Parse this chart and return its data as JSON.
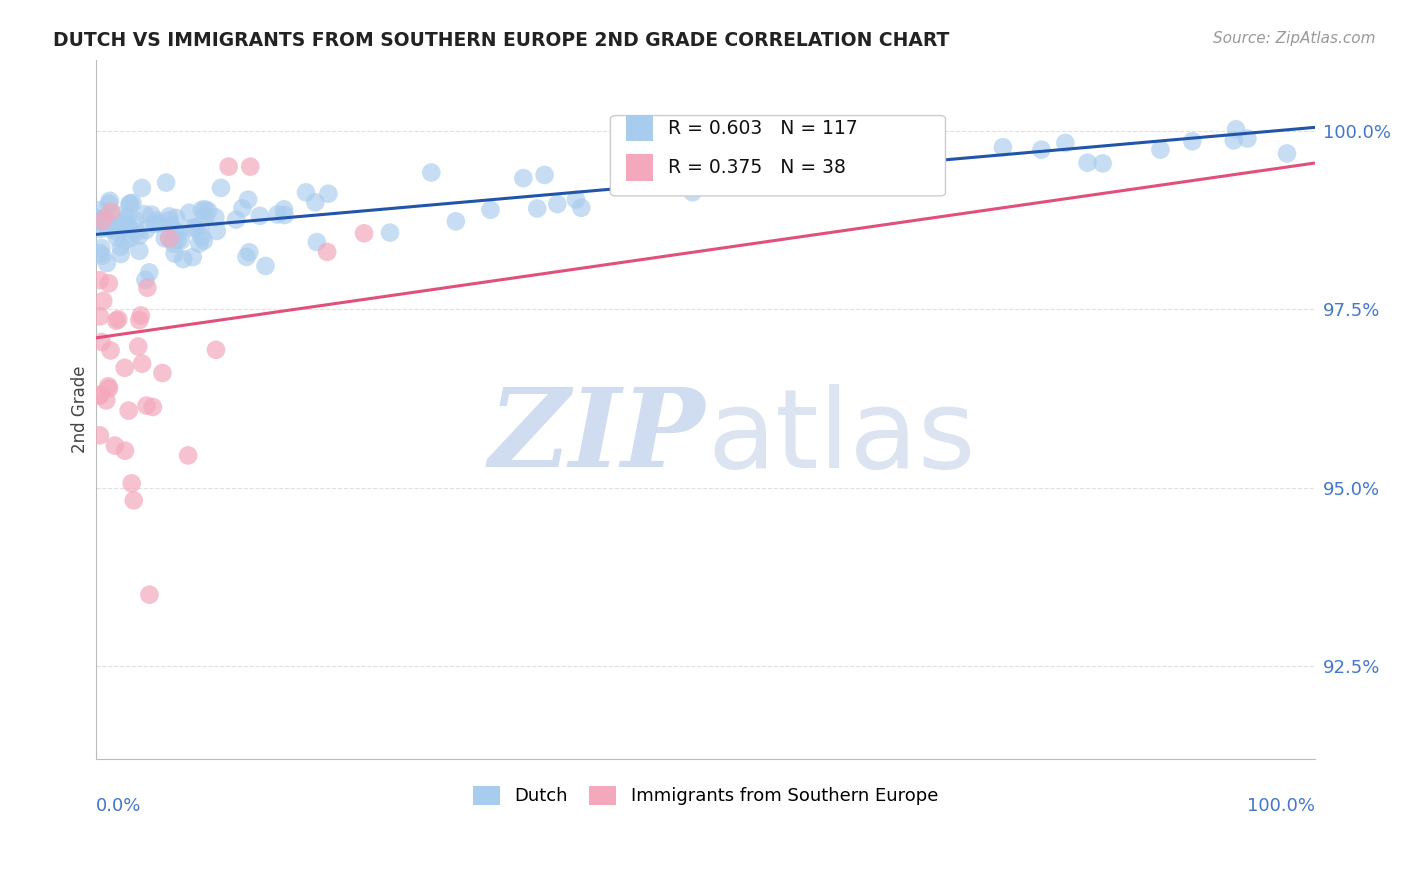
{
  "title": "DUTCH VS IMMIGRANTS FROM SOUTHERN EUROPE 2ND GRADE CORRELATION CHART",
  "source": "Source: ZipAtlas.com",
  "ylabel": "2nd Grade",
  "x_min": 0.0,
  "x_max": 100.0,
  "y_min": 91.2,
  "y_max": 101.0,
  "yticks": [
    92.5,
    95.0,
    97.5,
    100.0
  ],
  "ytick_labels": [
    "92.5%",
    "95.0%",
    "97.5%",
    "100.0%"
  ],
  "blue_r": 0.603,
  "blue_n": 117,
  "pink_r": 0.375,
  "pink_n": 38,
  "blue_color": "#A8CCEE",
  "pink_color": "#F4A8BC",
  "blue_line_color": "#2255AA",
  "pink_line_color": "#E0507A",
  "background_color": "#FFFFFF",
  "grid_color": "#DDDDDD",
  "blue_line_x0": 0.0,
  "blue_line_y0": 98.55,
  "blue_line_x1": 100.0,
  "blue_line_y1": 100.05,
  "pink_line_x0": 0.0,
  "pink_line_y0": 97.1,
  "pink_line_x1": 100.0,
  "pink_line_y1": 99.55
}
